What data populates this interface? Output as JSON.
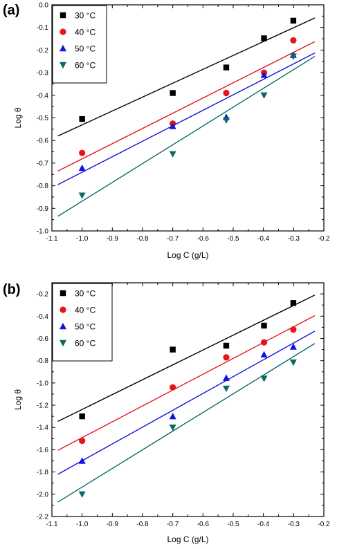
{
  "chart_data": [
    {
      "type": "scatter",
      "panel_label": "(a)",
      "xlabel": "Log C (g/L)",
      "ylabel": "Log θ",
      "xlim": [
        -1.1,
        -0.2
      ],
      "ylim": [
        -1.0,
        0.0
      ],
      "xticks": [
        -1.1,
        -1.0,
        -0.9,
        -0.8,
        -0.7,
        -0.6,
        -0.5,
        -0.4,
        -0.3,
        -0.2
      ],
      "xtick_labels": [
        "-1.1",
        "-1.0",
        "-0.9",
        "-0.8",
        "-0.7",
        "-0.6",
        "-0.5",
        "-0.4",
        "-0.3",
        "-0.2"
      ],
      "yticks": [
        0.0,
        -0.1,
        -0.2,
        -0.3,
        -0.4,
        -0.5,
        -0.6,
        -0.7,
        -0.8,
        -0.9,
        -1.0
      ],
      "ytick_labels": [
        "0.0",
        "-0.1",
        "-0.2",
        "-0.3",
        "-0.4",
        "-0.5",
        "-0.6",
        "-0.7",
        "-0.8",
        "-0.9",
        "-1.0"
      ],
      "legend_position": "top-left",
      "x": [
        -1.0,
        -0.7,
        -0.523,
        -0.398,
        -0.301
      ],
      "series": [
        {
          "name": "30 °C",
          "marker": "square",
          "color": "#000000",
          "values": [
            -0.505,
            -0.39,
            -0.277,
            -0.148,
            -0.07
          ],
          "fit": [
            [
              -1.08,
              -0.58
            ],
            [
              -0.23,
              -0.058
            ]
          ]
        },
        {
          "name": "40 °C",
          "marker": "circle",
          "color": "#e8141b",
          "values": [
            -0.655,
            -0.525,
            -0.39,
            -0.3,
            -0.157
          ],
          "fit": [
            [
              -1.08,
              -0.735
            ],
            [
              -0.23,
              -0.163
            ]
          ]
        },
        {
          "name": "50 °C",
          "marker": "triangle-up",
          "color": "#1111e0",
          "values": [
            -0.722,
            -0.537,
            -0.497,
            -0.31,
            -0.222
          ],
          "fit": [
            [
              -1.08,
              -0.795
            ],
            [
              -0.23,
              -0.213
            ]
          ]
        },
        {
          "name": "60 °C",
          "marker": "triangle-down",
          "color": "#0a6b62",
          "values": [
            -0.843,
            -0.66,
            -0.51,
            -0.4,
            -0.228
          ],
          "fit": [
            [
              -1.08,
              -0.935
            ],
            [
              -0.23,
              -0.228
            ]
          ]
        }
      ]
    },
    {
      "type": "scatter",
      "panel_label": "(b)",
      "xlabel": "Log C (g/L)",
      "ylabel": "Log θ",
      "xlim": [
        -1.1,
        -0.2
      ],
      "ylim": [
        -2.2,
        -0.1
      ],
      "xticks": [
        -1.1,
        -1.0,
        -0.9,
        -0.8,
        -0.7,
        -0.6,
        -0.5,
        -0.4,
        -0.3,
        -0.2
      ],
      "xtick_labels": [
        "-1.1",
        "-1.0",
        "-0.9",
        "-0.8",
        "-0.7",
        "-0.6",
        "-0.5",
        "-0.4",
        "-0.3",
        "-0.2"
      ],
      "yticks": [
        -0.2,
        -0.4,
        -0.6,
        -0.8,
        -1.0,
        -1.2,
        -1.4,
        -1.6,
        -1.8,
        -2.0,
        -2.2
      ],
      "ytick_labels": [
        "-0.2",
        "-0.4",
        "-0.6",
        "-0.8",
        "-1.0",
        "-1.2",
        "-1.4",
        "-1.6",
        "-1.8",
        "-2.0",
        "-2.2"
      ],
      "legend_position": "top-left",
      "x": [
        -1.0,
        -0.7,
        -0.523,
        -0.398,
        -0.301
      ],
      "series": [
        {
          "name": "30 °C",
          "marker": "square",
          "color": "#000000",
          "values": [
            -1.3,
            -0.7,
            -0.665,
            -0.485,
            -0.282
          ],
          "fit": [
            [
              -1.08,
              -1.345
            ],
            [
              -0.23,
              -0.21
            ]
          ]
        },
        {
          "name": "40 °C",
          "marker": "circle",
          "color": "#e8141b",
          "values": [
            -1.52,
            -1.04,
            -0.77,
            -0.635,
            -0.52
          ],
          "fit": [
            [
              -1.08,
              -1.605
            ],
            [
              -0.23,
              -0.395
            ]
          ]
        },
        {
          "name": "50 °C",
          "marker": "triangle-up",
          "color": "#1111e0",
          "values": [
            -1.7,
            -1.3,
            -0.955,
            -0.745,
            -0.675
          ],
          "fit": [
            [
              -1.08,
              -1.82
            ],
            [
              -0.23,
              -0.535
            ]
          ]
        },
        {
          "name": "60 °C",
          "marker": "triangle-down",
          "color": "#0a6b62",
          "values": [
            -2.0,
            -1.4,
            -1.05,
            -0.96,
            -0.815
          ],
          "fit": [
            [
              -1.08,
              -2.07
            ],
            [
              -0.23,
              -0.645
            ]
          ]
        }
      ]
    }
  ]
}
